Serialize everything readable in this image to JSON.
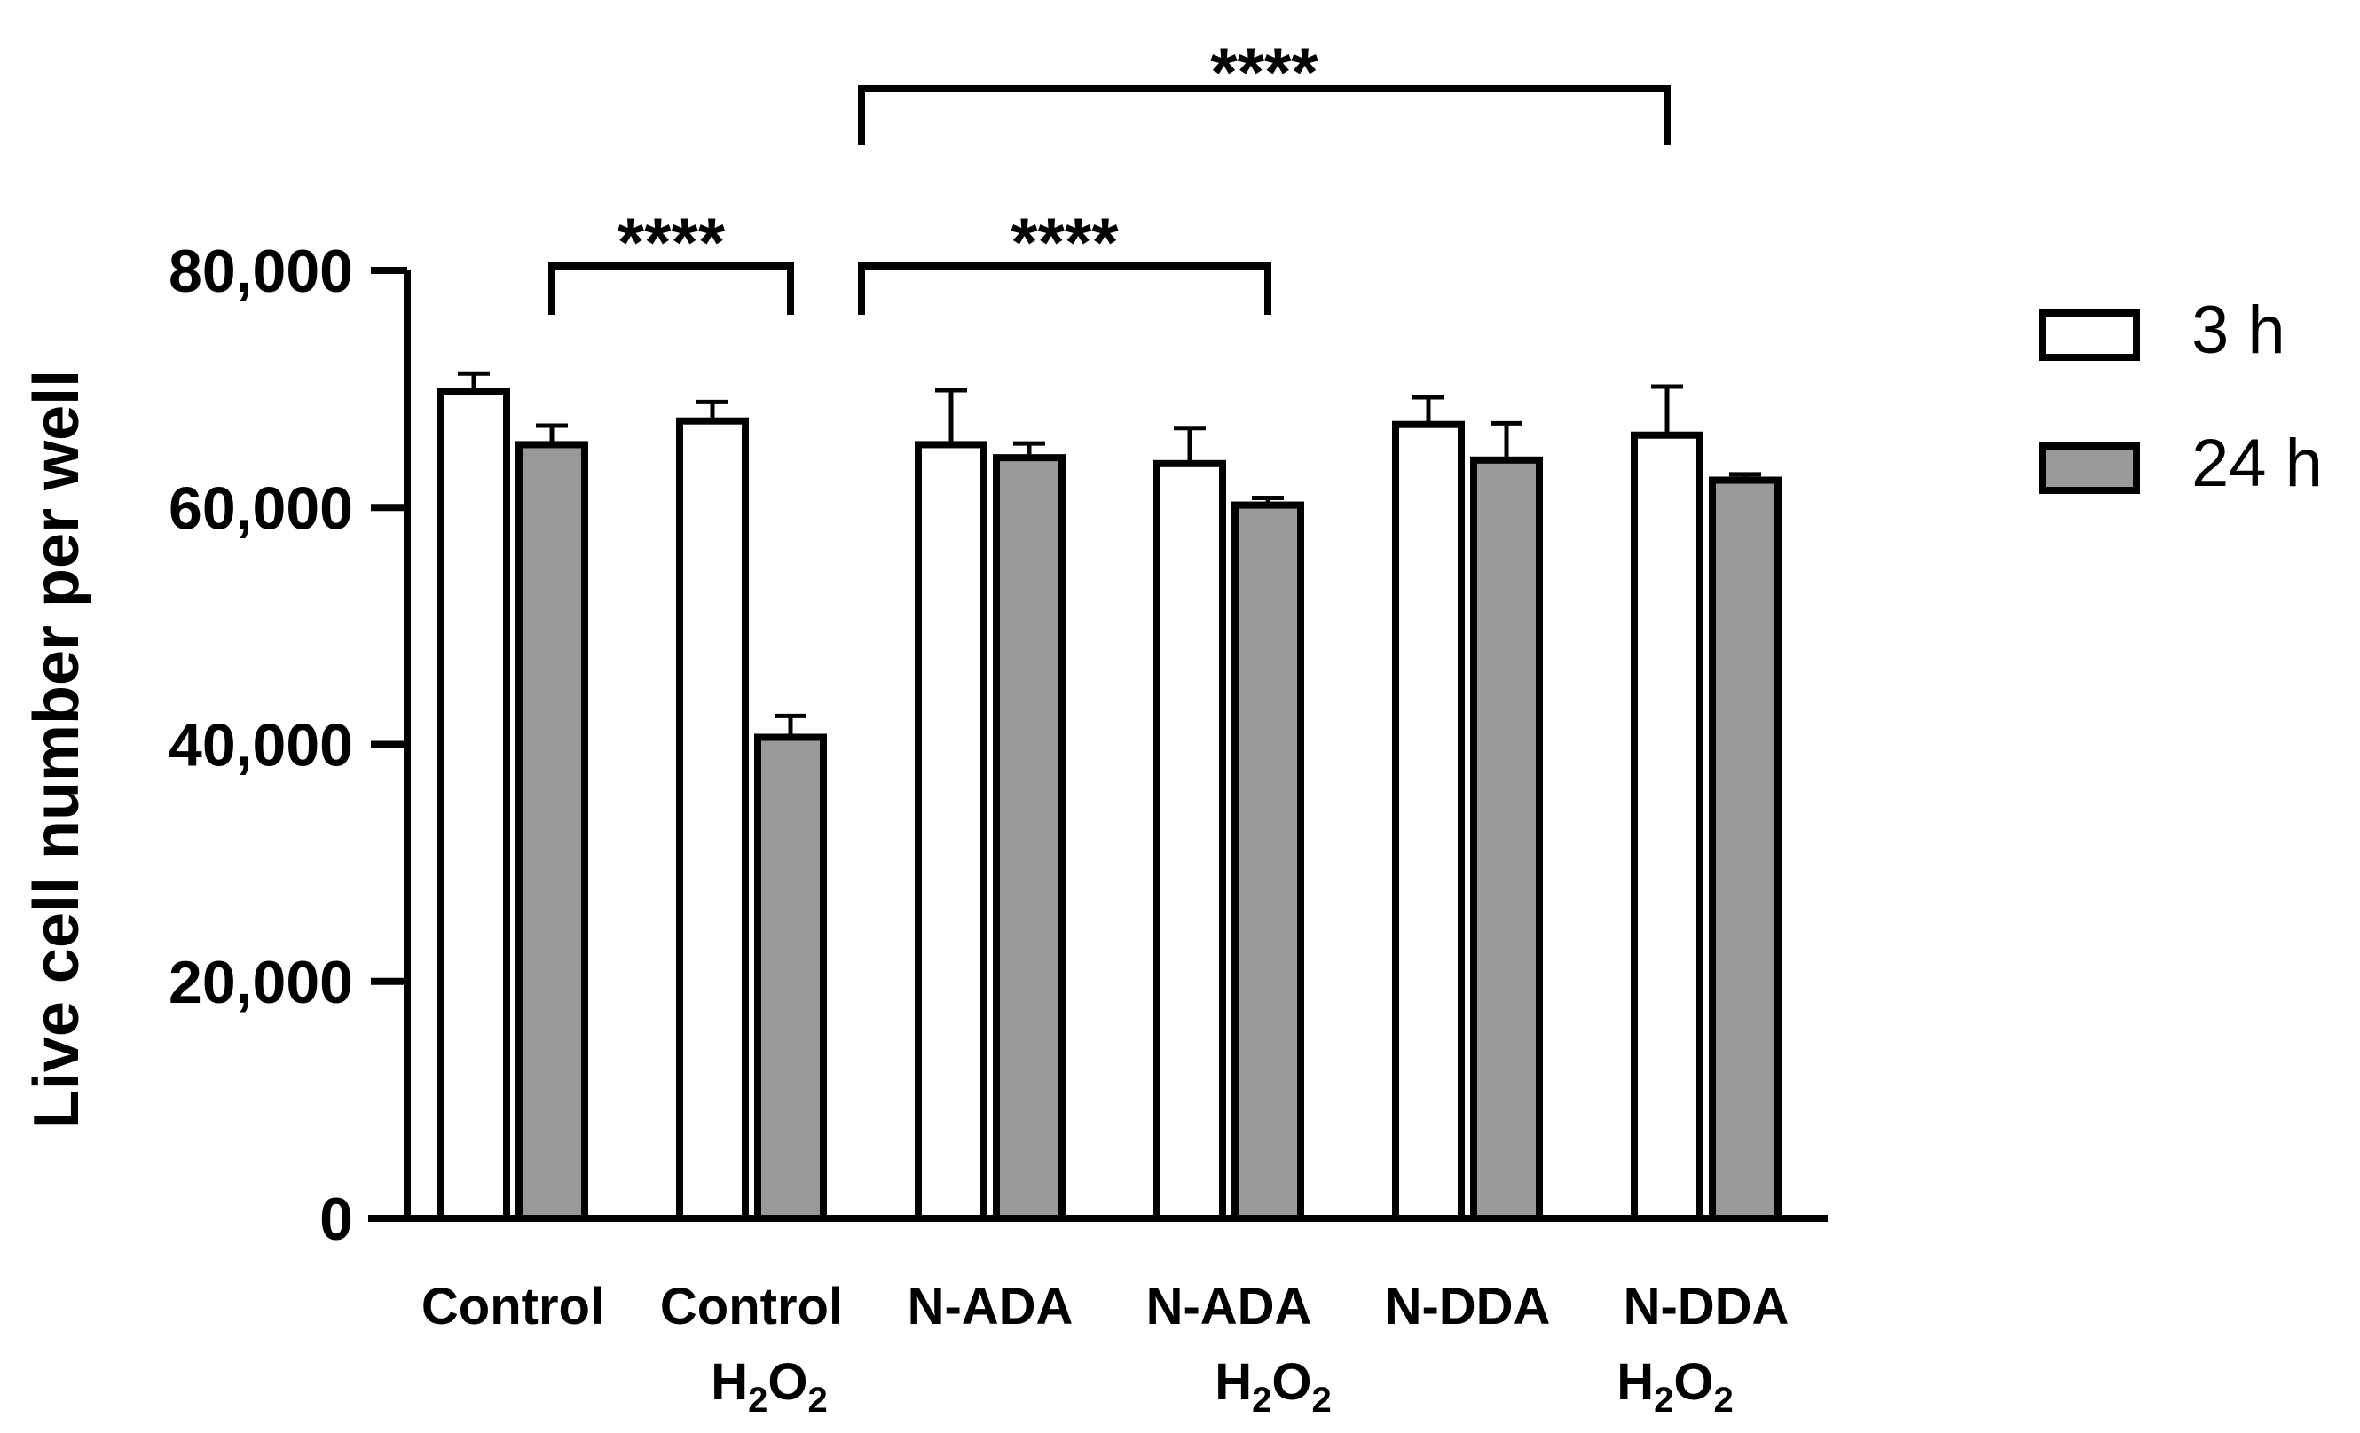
{
  "chart_data": {
    "type": "bar",
    "title": "",
    "xlabel": "",
    "ylabel": "Live cell number per well",
    "ylim": [
      0,
      80000
    ],
    "yticks": [
      0,
      20000,
      40000,
      60000,
      80000
    ],
    "ytick_labels": [
      "0",
      "20,000",
      "40,000",
      "60,000",
      "80,000"
    ],
    "categories": [
      {
        "line1": "Control",
        "line2": null
      },
      {
        "line1": "Control",
        "line2": "H2O2"
      },
      {
        "line1": "N-ADA",
        "line2": null
      },
      {
        "line1": "N-ADA",
        "line2": "H2O2"
      },
      {
        "line1": "N-DDA",
        "line2": null
      },
      {
        "line1": "N-DDA",
        "line2": "H2O2"
      }
    ],
    "subscript_formula": {
      "base": "H",
      "sub1": "2",
      "mid": "O",
      "sub2": "2"
    },
    "series": [
      {
        "name": "3 h",
        "color": "#ffffff",
        "values": [
          69800,
          67300,
          65300,
          63700,
          67000,
          66100
        ],
        "errors": [
          1500,
          1600,
          4600,
          3000,
          2300,
          4100
        ]
      },
      {
        "name": "24 h",
        "color": "#999999",
        "values": [
          65300,
          40600,
          64200,
          60200,
          64000,
          62300
        ],
        "errors": [
          1600,
          1800,
          1200,
          600,
          3100,
          500
        ]
      }
    ],
    "legend": {
      "position": "top-right",
      "entries": [
        "3 h",
        "24 h"
      ]
    },
    "significance": [
      {
        "from_category": 0,
        "from_series": 1,
        "to_category": 1,
        "to_series": 1,
        "label": "****"
      },
      {
        "from_category": 1,
        "from_series": 1,
        "to_category": 3,
        "to_series": 1,
        "label": "****"
      },
      {
        "from_category": 1,
        "from_series": 1,
        "to_category": 5,
        "to_series": 0,
        "label": "****"
      }
    ]
  },
  "colors": {
    "axis": "#000000",
    "bar_3h": "#ffffff",
    "bar_24h": "#999999"
  }
}
